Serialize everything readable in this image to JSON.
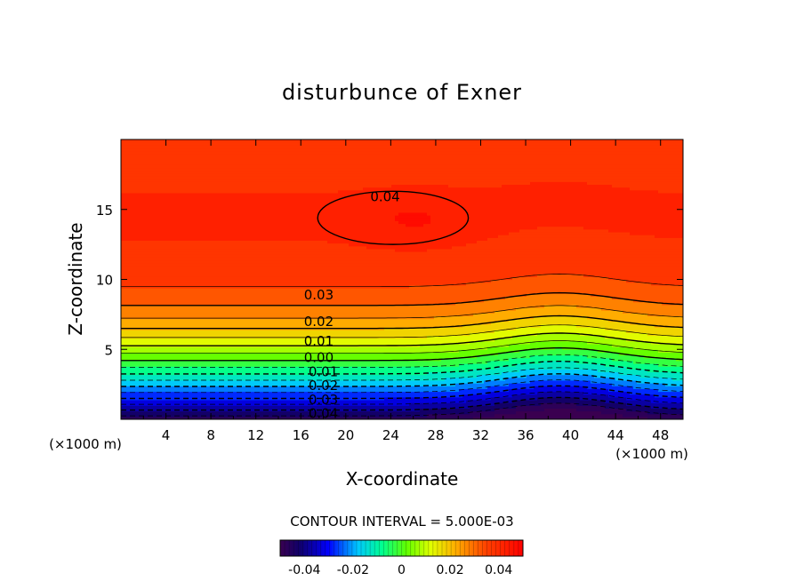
{
  "chart_data": {
    "type": "heatmap",
    "title": "disturbunce of Exner",
    "xlabel": "X-coordinate",
    "ylabel": "Z-coordinate",
    "x_unit": "(×1000 m)",
    "y_unit": "(×1000 m)",
    "xlim": [
      0,
      50
    ],
    "ylim": [
      0,
      20
    ],
    "x_ticks": [
      4,
      8,
      12,
      16,
      20,
      24,
      28,
      32,
      36,
      40,
      44,
      48
    ],
    "y_ticks": [
      5,
      10,
      15
    ],
    "contour_interval_label": "CONTOUR INTERVAL = 5.000E-03",
    "contour_interval": 0.005,
    "color_range": [
      -0.05,
      0.05
    ],
    "colorbar_ticks": [
      "-0.04",
      "-0.02",
      "0",
      "0.02",
      "0.04"
    ],
    "contour_labels": [
      {
        "text": "0.04",
        "x": 23.5,
        "z": 15.9
      },
      {
        "text": "0.03",
        "x": 17.6,
        "z": 8.9
      },
      {
        "text": "0.02",
        "x": 17.6,
        "z": 7.0
      },
      {
        "text": "0.01",
        "x": 17.6,
        "z": 5.6
      },
      {
        "text": "0.00",
        "x": 17.6,
        "z": 4.4
      },
      {
        "text": "0.01",
        "x": 18.0,
        "z": 3.4
      },
      {
        "text": "0.02",
        "x": 18.0,
        "z": 2.4
      },
      {
        "text": "0.03",
        "x": 18.0,
        "z": 1.4
      },
      {
        "text": "0.04",
        "x": 18.0,
        "z": 0.4
      }
    ],
    "grid": false
  }
}
